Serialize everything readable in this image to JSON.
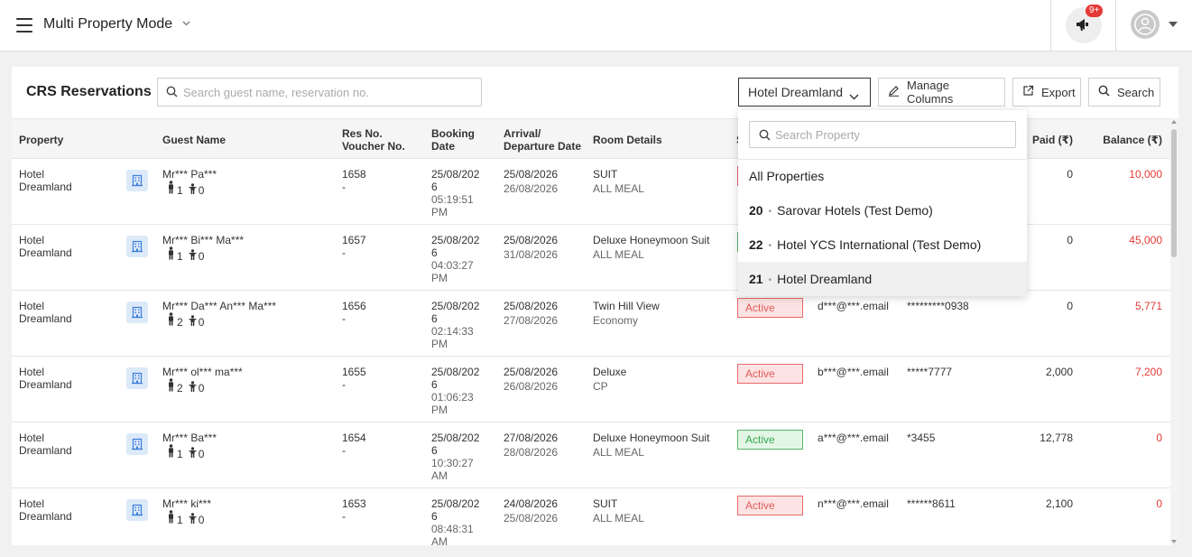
{
  "topbar": {
    "title": "Multi Property Mode",
    "notification_badge": "9+"
  },
  "card": {
    "title": "CRS Reservations",
    "search_placeholder": "Search guest name, reservation no."
  },
  "toolbar": {
    "property_selected": "Hotel Dreamland",
    "manage_columns": "Manage Columns",
    "export": "Export",
    "search": "Search"
  },
  "columns": {
    "property": "Property",
    "guest_name": "Guest Name",
    "res_no_1": "Res No.",
    "res_no_2": "Voucher No.",
    "booking_1": "Booking",
    "booking_2": "Date",
    "arrival_1": "Arrival/",
    "arrival_2": "Departure Date",
    "room_details": "Room Details",
    "status_partial": "S",
    "paid": "Paid (₹)",
    "balance": "Balance (₹)"
  },
  "rows": [
    {
      "property_1": "Hotel",
      "property_2": "Dreamland",
      "guest": "Mr*** Pa***",
      "adults": "1",
      "children": "0",
      "res_no": "1658",
      "voucher": "-",
      "bd_1": "25/08/202",
      "bd_2": "6",
      "bd_3": "05:19:51",
      "bd_4": "PM",
      "arrival": "25/08/2026",
      "departure": "26/08/2026",
      "room": "SUIT",
      "plan": "ALL MEAL",
      "status": "",
      "email": "",
      "phone": "",
      "paid": "0",
      "balance": "10,000"
    },
    {
      "property_1": "Hotel",
      "property_2": "Dreamland",
      "guest": "Mr*** Bi*** Ma***",
      "adults": "1",
      "children": "0",
      "res_no": "1657",
      "voucher": "-",
      "bd_1": "25/08/202",
      "bd_2": "6",
      "bd_3": "04:03:27",
      "bd_4": "PM",
      "arrival": "25/08/2026",
      "departure": "31/08/2026",
      "room": "Deluxe Honeymoon Suit",
      "plan": "ALL MEAL",
      "status": "",
      "email": "",
      "phone": "",
      "paid": "0",
      "balance": "45,000"
    },
    {
      "property_1": "Hotel",
      "property_2": "Dreamland",
      "guest": "Mr*** Da*** An*** Ma***",
      "adults": "2",
      "children": "0",
      "res_no": "1656",
      "voucher": "-",
      "bd_1": "25/08/202",
      "bd_2": "6",
      "bd_3": "02:14:33",
      "bd_4": "PM",
      "arrival": "25/08/2026",
      "departure": "27/08/2026",
      "room": "Twin Hill View",
      "plan": "Economy",
      "status": "Active",
      "email": "d***@***.email",
      "phone": "*********0938",
      "paid": "0",
      "balance": "5,771"
    },
    {
      "property_1": "Hotel",
      "property_2": "Dreamland",
      "guest": "Mr*** ol*** ma***",
      "adults": "2",
      "children": "0",
      "res_no": "1655",
      "voucher": "-",
      "bd_1": "25/08/202",
      "bd_2": "6",
      "bd_3": "01:06:23",
      "bd_4": "PM",
      "arrival": "25/08/2026",
      "departure": "26/08/2026",
      "room": "Deluxe",
      "plan": "CP",
      "status": "Active",
      "email": "b***@***.email",
      "phone": "*****7777",
      "paid": "2,000",
      "balance": "7,200"
    },
    {
      "property_1": "Hotel",
      "property_2": "Dreamland",
      "guest": "Mr*** Ba***",
      "adults": "1",
      "children": "0",
      "res_no": "1654",
      "voucher": "-",
      "bd_1": "25/08/202",
      "bd_2": "6",
      "bd_3": "10:30:27",
      "bd_4": "AM",
      "arrival": "27/08/2026",
      "departure": "28/08/2026",
      "room": "Deluxe Honeymoon Suit",
      "plan": "ALL MEAL",
      "status": "Active",
      "email": "a***@***.email",
      "phone": "*3455",
      "paid": "12,778",
      "balance": "0"
    },
    {
      "property_1": "Hotel",
      "property_2": "Dreamland",
      "guest": "Mr*** ki***",
      "adults": "1",
      "children": "0",
      "res_no": "1653",
      "voucher": "-",
      "bd_1": "25/08/202",
      "bd_2": "6",
      "bd_3": "08:48:31",
      "bd_4": "AM",
      "arrival": "24/08/2026",
      "departure": "25/08/2026",
      "room": "SUIT",
      "plan": "ALL MEAL",
      "status": "Active",
      "email": "n***@***.email",
      "phone": "******8611",
      "paid": "2,100",
      "balance": "0"
    }
  ],
  "row_status_colors": [
    "red",
    "green",
    "red",
    "red",
    "green",
    "red"
  ],
  "dropdown": {
    "search_placeholder": "Search Property",
    "all": "All Properties",
    "items": [
      {
        "code": "20",
        "name": "Sarovar Hotels (Test Demo)"
      },
      {
        "code": "22",
        "name": "Hotel YCS International (Test Demo)"
      },
      {
        "code": "21",
        "name": "Hotel Dreamland"
      }
    ]
  },
  "colors": {
    "accent_red": "#e53935",
    "status_active_red": "#e05a5a",
    "status_active_green": "#39a84f",
    "icon_blue": "#3b7ddd"
  },
  "icons": [
    "menu-icon",
    "chevron-down-icon",
    "megaphone-icon",
    "user-avatar-icon",
    "search-icon",
    "pencil-icon",
    "export-icon",
    "building-icon",
    "adult-icon",
    "child-icon"
  ]
}
